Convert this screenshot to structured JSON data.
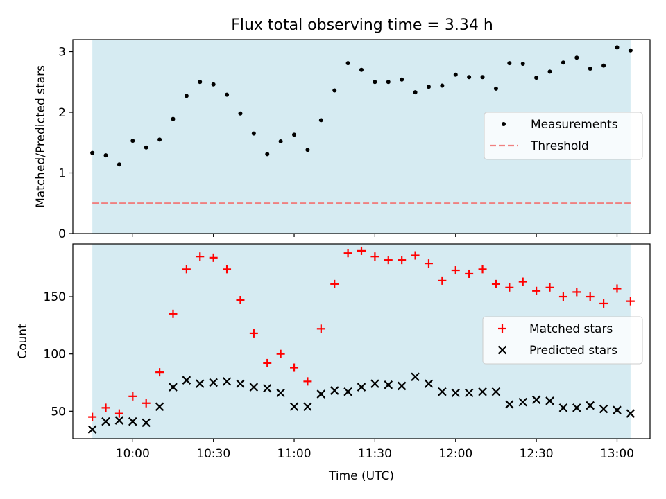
{
  "title": "Flux total observing time = 3.34 h",
  "colors": {
    "shade": "#add8e6",
    "measurement": "#000000",
    "threshold": "#f08080",
    "matched": "#ff0000",
    "predicted": "#000000"
  },
  "chart_data": [
    {
      "type": "scatter",
      "ylabel": "Matched/Predicted stars",
      "ylim": [
        0,
        3.2
      ],
      "yticks": [
        0,
        1,
        2,
        3
      ],
      "legend_position": "center-right",
      "series": [
        {
          "name": "Measurements",
          "marker": "dot",
          "x": [
            "09:45",
            "09:50",
            "09:55",
            "10:00",
            "10:05",
            "10:10",
            "10:15",
            "10:20",
            "10:25",
            "10:30",
            "10:35",
            "10:40",
            "10:45",
            "10:50",
            "10:55",
            "11:00",
            "11:05",
            "11:10",
            "11:15",
            "11:20",
            "11:25",
            "11:30",
            "11:35",
            "11:40",
            "11:45",
            "11:50",
            "11:55",
            "12:00",
            "12:05",
            "12:10",
            "12:15",
            "12:20",
            "12:25",
            "12:30",
            "12:35",
            "12:40",
            "12:45",
            "12:50",
            "12:55",
            "13:00",
            "13:05"
          ],
          "values": [
            1.33,
            1.29,
            1.14,
            1.53,
            1.42,
            1.55,
            1.89,
            2.27,
            2.5,
            2.46,
            2.29,
            1.98,
            1.65,
            1.31,
            1.52,
            1.63,
            1.38,
            1.87,
            2.36,
            2.81,
            2.7,
            2.5,
            2.5,
            2.54,
            2.33,
            2.42,
            2.44,
            2.62,
            2.58,
            2.58,
            2.39,
            2.81,
            2.8,
            2.57,
            2.67,
            2.82,
            2.9,
            2.72,
            2.77,
            3.07,
            3.02
          ]
        },
        {
          "name": "Threshold",
          "marker": "dashed-line",
          "x": [
            "09:45",
            "13:05"
          ],
          "values": [
            0.5,
            0.5
          ]
        }
      ]
    },
    {
      "type": "scatter",
      "xlabel": "Time (UTC)",
      "ylabel": "Count",
      "ylim": [
        26,
        196
      ],
      "yticks": [
        50,
        100,
        150
      ],
      "xticks": [
        "10:00",
        "10:30",
        "11:00",
        "11:30",
        "12:00",
        "12:30",
        "13:00"
      ],
      "legend_position": "center-right",
      "series": [
        {
          "name": "Matched stars",
          "marker": "plus",
          "x": [
            "09:45",
            "09:50",
            "09:55",
            "10:00",
            "10:05",
            "10:10",
            "10:15",
            "10:20",
            "10:25",
            "10:30",
            "10:35",
            "10:40",
            "10:45",
            "10:50",
            "10:55",
            "11:00",
            "11:05",
            "11:10",
            "11:15",
            "11:20",
            "11:25",
            "11:30",
            "11:35",
            "11:40",
            "11:45",
            "11:50",
            "11:55",
            "12:00",
            "12:05",
            "12:10",
            "12:15",
            "12:20",
            "12:25",
            "12:30",
            "12:35",
            "12:40",
            "12:45",
            "12:50",
            "12:55",
            "13:00",
            "13:05"
          ],
          "values": [
            45,
            53,
            48,
            63,
            57,
            84,
            135,
            174,
            185,
            184,
            174,
            147,
            118,
            92,
            100,
            88,
            76,
            122,
            161,
            188,
            190,
            185,
            182,
            182,
            186,
            179,
            164,
            173,
            170,
            174,
            161,
            158,
            163,
            155,
            158,
            150,
            154,
            150,
            144,
            157,
            146
          ]
        },
        {
          "name": "Predicted stars",
          "marker": "x",
          "x": [
            "09:45",
            "09:50",
            "09:55",
            "10:00",
            "10:05",
            "10:10",
            "10:15",
            "10:20",
            "10:25",
            "10:30",
            "10:35",
            "10:40",
            "10:45",
            "10:50",
            "10:55",
            "11:00",
            "11:05",
            "11:10",
            "11:15",
            "11:20",
            "11:25",
            "11:30",
            "11:35",
            "11:40",
            "11:45",
            "11:50",
            "11:55",
            "12:00",
            "12:05",
            "12:10",
            "12:15",
            "12:20",
            "12:25",
            "12:30",
            "12:35",
            "12:40",
            "12:45",
            "12:50",
            "12:55",
            "13:00",
            "13:05"
          ],
          "values": [
            34,
            41,
            42,
            41,
            40,
            54,
            71,
            77,
            74,
            75,
            76,
            74,
            71,
            70,
            66,
            54,
            54,
            65,
            68,
            67,
            71,
            74,
            73,
            72,
            80,
            74,
            67,
            66,
            66,
            67,
            67,
            56,
            58,
            60,
            59,
            53,
            53,
            55,
            52,
            51,
            48
          ]
        }
      ]
    }
  ]
}
